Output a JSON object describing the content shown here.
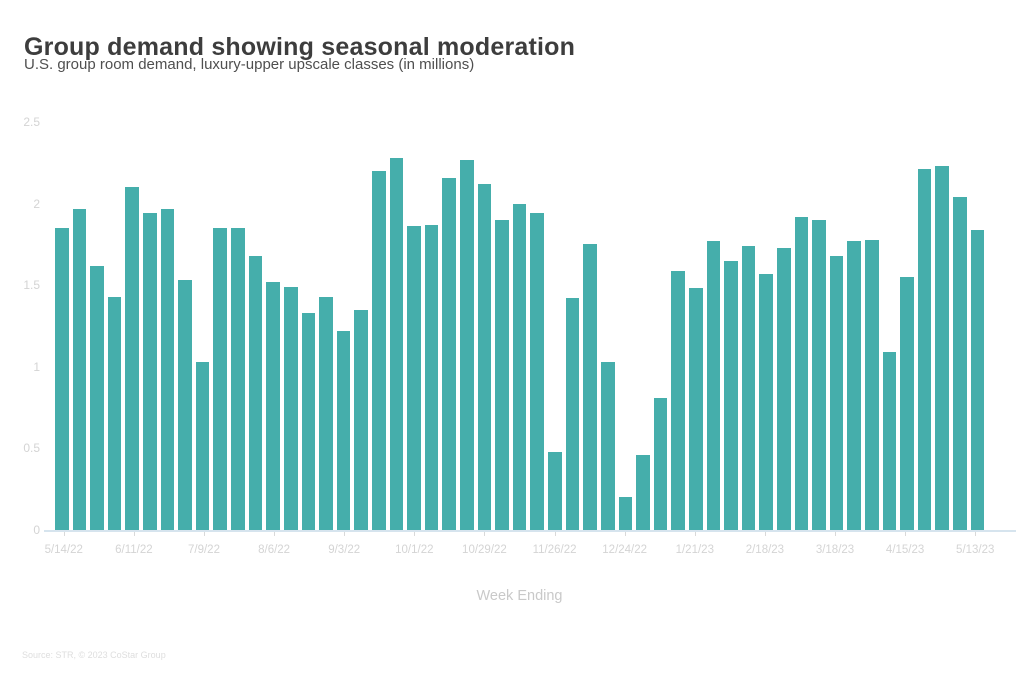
{
  "header": {
    "title": "Group demand showing seasonal moderation",
    "subtitle": "U.S. group room demand, luxury-upper upscale classes (in millions)"
  },
  "footer": {
    "source": "Source: STR, © 2023 CoStar Group"
  },
  "colors": {
    "bar": "#45aeab",
    "title": "#3d3d3d",
    "subtitle": "#4f4f4f",
    "axis_label": "#d4d4d4",
    "axis_title": "#c9c9c9",
    "tick": "#d9d9d9",
    "baseline": "#d6e4ee",
    "source_text": "#dedede",
    "background": "#ffffff"
  },
  "chart_data": {
    "type": "bar",
    "title": "Group demand showing seasonal moderation",
    "subtitle": "U.S. group room demand, luxury-upper upscale classes (in millions)",
    "xlabel": "Week Ending",
    "ylabel": "",
    "ylim": [
      0,
      2.5
    ],
    "yticks": [
      0,
      0.5,
      1,
      1.5,
      2,
      2.5
    ],
    "grid": false,
    "legend": false,
    "bar_count": 53,
    "x_tick_labels": [
      "5/14/22",
      "6/11/22",
      "7/9/22",
      "8/6/22",
      "9/3/22",
      "10/1/22",
      "10/29/22",
      "11/26/22",
      "12/24/22",
      "1/21/23",
      "2/18/23",
      "3/18/23",
      "4/15/23",
      "5/13/23"
    ],
    "x_tick_positions": [
      0,
      4,
      8,
      12,
      16,
      20,
      24,
      28,
      32,
      36,
      40,
      44,
      48,
      52
    ],
    "values": [
      1.85,
      1.97,
      1.62,
      1.43,
      2.1,
      1.94,
      1.97,
      1.53,
      1.03,
      1.85,
      1.85,
      1.68,
      1.52,
      1.49,
      1.33,
      1.43,
      1.22,
      1.35,
      2.2,
      2.28,
      1.86,
      1.87,
      2.16,
      2.27,
      2.12,
      1.9,
      2.0,
      1.94,
      0.48,
      1.42,
      1.75,
      1.03,
      0.2,
      0.46,
      0.81,
      1.59,
      1.48,
      1.77,
      1.65,
      1.74,
      1.57,
      1.73,
      1.92,
      1.9,
      1.68,
      1.77,
      1.78,
      1.09,
      1.55,
      2.21,
      2.23,
      2.04,
      1.84
    ]
  }
}
